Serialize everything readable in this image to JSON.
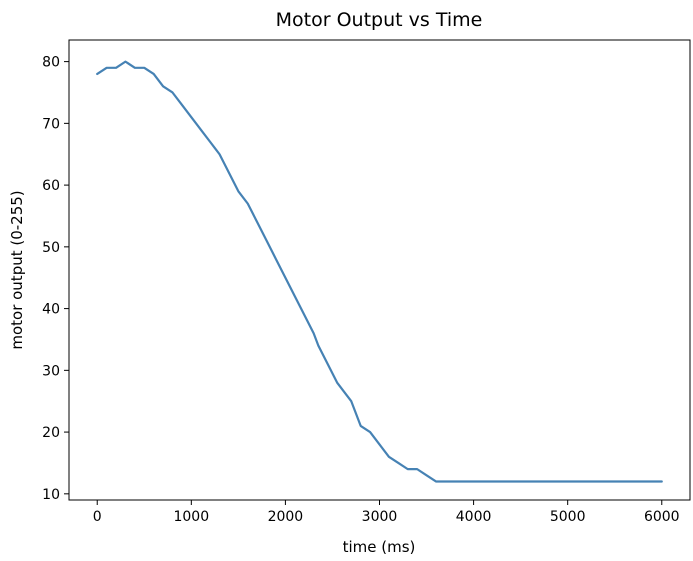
{
  "chart_data": {
    "type": "line",
    "title": "Motor Output vs Time",
    "xlabel": "time (ms)",
    "ylabel": "motor output (0-255)",
    "xlim": [
      -300,
      6300
    ],
    "ylim": [
      9,
      83.5
    ],
    "xticks": [
      0,
      1000,
      2000,
      3000,
      4000,
      5000,
      6000
    ],
    "yticks": [
      10,
      20,
      30,
      40,
      50,
      60,
      70,
      80
    ],
    "grid": false,
    "series": [
      {
        "color": "#4682b4",
        "x": [
          0,
          100,
          200,
          300,
          400,
          500,
          600,
          700,
          800,
          900,
          1000,
          1100,
          1200,
          1250,
          1300,
          1400,
          1500,
          1600,
          1700,
          1800,
          1900,
          2000,
          2100,
          2200,
          2300,
          2350,
          2450,
          2550,
          2650,
          2700,
          2800,
          2900,
          3000,
          3100,
          3200,
          3300,
          3400,
          3500,
          3600,
          3650,
          4000,
          5000,
          6000
        ],
        "y": [
          78,
          79,
          79,
          80,
          79,
          79,
          78,
          76,
          75,
          73,
          71,
          69,
          67,
          66,
          65,
          62,
          59,
          57,
          54,
          51,
          48,
          45,
          42,
          39,
          36,
          34,
          31,
          28,
          26,
          25,
          21,
          20,
          18,
          16,
          15,
          14,
          14,
          13,
          12,
          12,
          12,
          12,
          12
        ]
      }
    ]
  }
}
